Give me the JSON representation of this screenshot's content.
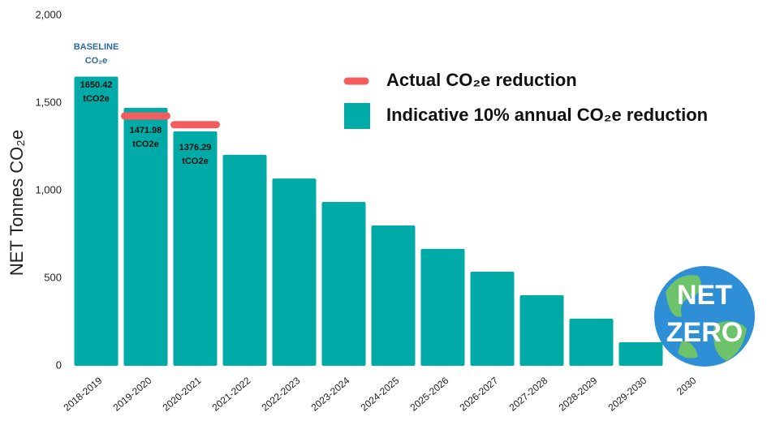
{
  "chart_data": {
    "type": "bar",
    "y_label": "NET Tonnes CO₂e",
    "categories": [
      "2018-2019",
      "2019-2020",
      "2020-2021",
      "2021-2022",
      "2022-2023",
      "2023-2024",
      "2024-2025",
      "2025-2026",
      "2026-2027",
      "2027-2028",
      "2028-2029",
      "2029-2030",
      "2030"
    ],
    "series": [
      {
        "name": "Indicative 10% annual CO₂e reduction",
        "color": "#00aaa6",
        "mark": "bar",
        "values": [
          1650.42,
          1472,
          1338,
          1204,
          1069,
          935,
          801,
          667,
          537,
          403,
          269,
          134,
          0
        ]
      },
      {
        "name": "Actual CO₂e reduction",
        "color": "#f45d5d",
        "mark": "dash",
        "values": [
          null,
          1426,
          1376.29,
          null,
          null,
          null,
          null,
          null,
          null,
          null,
          null,
          null,
          null
        ]
      }
    ],
    "ylim": [
      0,
      2000
    ],
    "yticks": [
      0,
      500,
      {
        "value": 1000,
        "label": "1,000"
      },
      {
        "value": 1500,
        "label": "1,500"
      },
      {
        "value": 2000,
        "label": "2,000"
      }
    ],
    "grid": false,
    "annotations": [
      {
        "category": "2018-2019",
        "lines": [
          "BASELINE",
          "CO₂e"
        ]
      },
      {
        "category": "2018-2019",
        "lines": [
          "1650.42",
          "tCO2e"
        ]
      },
      {
        "category": "2019-2020",
        "lines": [
          "1471.98",
          "tCO2e"
        ]
      },
      {
        "category": "2020-2021",
        "lines": [
          "1376.29",
          "tCO2e"
        ]
      }
    ],
    "badge": [
      "NET",
      "ZERO"
    ]
  }
}
